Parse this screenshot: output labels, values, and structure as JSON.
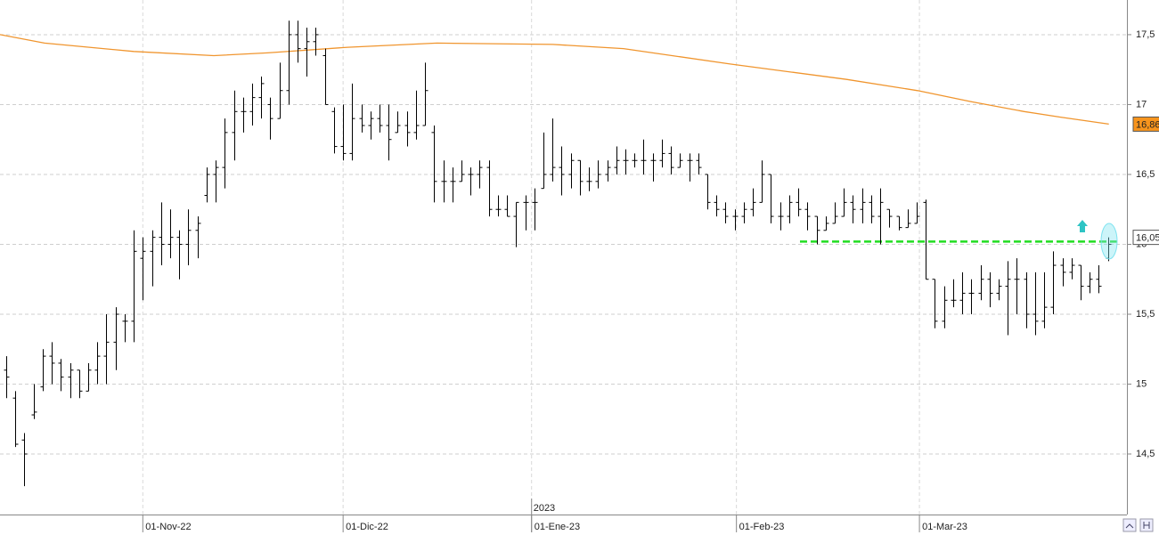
{
  "chart_data": {
    "type": "ohlc",
    "color": "#000000",
    "x": [
      0,
      1,
      2,
      3,
      4,
      5,
      6,
      7,
      8,
      9,
      10,
      11,
      12,
      13,
      14,
      15,
      16,
      17,
      18,
      19,
      20,
      21,
      22,
      23,
      24,
      25,
      26,
      27,
      28,
      29,
      30,
      31,
      32,
      33,
      34,
      35,
      36,
      37,
      38,
      39,
      40,
      41,
      42,
      43,
      44,
      45,
      46,
      47,
      48,
      49,
      50,
      51,
      52,
      53,
      54,
      55,
      56,
      57,
      58,
      59,
      60,
      61,
      62,
      63,
      64,
      65,
      66,
      67,
      68,
      69,
      70,
      71,
      72,
      73,
      74,
      75,
      76,
      77,
      78,
      79,
      80,
      81,
      82,
      83,
      84,
      85,
      86,
      87,
      88,
      89,
      90,
      91,
      92,
      93,
      94,
      95,
      96,
      97,
      98,
      99,
      100,
      101,
      102,
      103,
      104,
      105,
      106,
      107,
      108,
      109,
      110,
      111,
      112,
      113,
      114,
      115,
      116,
      117,
      118,
      119,
      120,
      121
    ],
    "open": [
      15.1,
      14.9,
      14.6,
      14.78,
      14.98,
      15.2,
      15.15,
      15.05,
      15.1,
      14.95,
      15.1,
      15.2,
      15.3,
      15.45,
      15.45,
      15.9,
      15.95,
      16.05,
      16.0,
      16.05,
      16.0,
      16.1,
      16.35,
      16.5,
      16.55,
      16.8,
      16.95,
      16.95,
      17.05,
      17.0,
      16.9,
      17.1,
      17.5,
      17.4,
      17.45,
      17.35,
      16.95,
      16.7,
      16.65,
      16.9,
      16.85,
      16.9,
      16.85,
      16.8,
      16.85,
      16.8,
      16.85,
      16.8,
      16.45,
      16.45,
      16.45,
      16.5,
      16.5,
      16.55,
      16.25,
      16.25,
      16.2,
      16.3,
      16.3,
      16.4,
      16.5,
      16.55,
      16.5,
      16.6,
      16.45,
      16.45,
      16.5,
      16.55,
      16.6,
      16.6,
      16.6,
      16.6,
      16.6,
      16.65,
      16.55,
      16.6,
      16.6,
      16.5,
      16.3,
      16.25,
      16.2,
      16.2,
      16.25,
      16.3,
      16.5,
      16.2,
      16.2,
      16.3,
      16.25,
      16.2,
      16.1,
      16.15,
      16.2,
      16.3,
      16.25,
      16.3,
      16.2,
      16.25,
      16.2,
      16.12,
      16.15,
      16.3,
      15.75,
      15.45,
      15.6,
      15.6,
      15.65,
      15.65,
      15.75,
      15.65,
      15.7,
      15.75,
      15.75,
      15.5,
      15.45,
      15.55,
      15.85,
      15.8,
      15.85,
      15.7,
      15.75,
      15.9
    ],
    "high": [
      15.2,
      14.95,
      14.65,
      15.0,
      15.25,
      15.3,
      15.18,
      15.15,
      15.1,
      15.15,
      15.3,
      15.5,
      15.55,
      15.5,
      16.1,
      16.05,
      16.1,
      16.3,
      16.25,
      16.1,
      16.25,
      16.2,
      16.55,
      16.6,
      16.9,
      17.1,
      17.05,
      17.15,
      17.2,
      17.05,
      17.3,
      17.6,
      17.6,
      17.55,
      17.55,
      17.4,
      16.98,
      17.0,
      17.15,
      17.0,
      16.95,
      17.0,
      17.0,
      16.95,
      16.95,
      17.1,
      17.3,
      16.85,
      16.6,
      16.55,
      16.6,
      16.55,
      16.6,
      16.6,
      16.35,
      16.35,
      16.3,
      16.35,
      16.4,
      16.8,
      16.9,
      16.7,
      16.65,
      16.6,
      16.55,
      16.6,
      16.6,
      16.7,
      16.68,
      16.65,
      16.75,
      16.65,
      16.75,
      16.7,
      16.65,
      16.65,
      16.65,
      16.5,
      16.35,
      16.3,
      16.25,
      16.3,
      16.4,
      16.6,
      16.5,
      16.3,
      16.35,
      16.4,
      16.3,
      16.2,
      16.2,
      16.3,
      16.4,
      16.35,
      16.4,
      16.35,
      16.4,
      16.25,
      16.2,
      16.25,
      16.3,
      16.32,
      15.75,
      15.7,
      15.75,
      15.8,
      15.75,
      15.85,
      15.8,
      15.75,
      15.88,
      15.9,
      15.8,
      15.8,
      15.8,
      15.95,
      15.9,
      15.9,
      15.85,
      15.8,
      15.85,
      16.05
    ],
    "low": [
      14.9,
      14.55,
      14.27,
      14.75,
      14.95,
      15.0,
      14.95,
      14.9,
      14.9,
      14.95,
      15.0,
      15.0,
      15.1,
      15.3,
      15.3,
      15.6,
      15.7,
      15.85,
      15.9,
      15.75,
      15.85,
      15.9,
      16.3,
      16.3,
      16.4,
      16.6,
      16.8,
      16.85,
      16.9,
      16.75,
      16.9,
      17.0,
      17.3,
      17.2,
      17.35,
      17.0,
      16.65,
      16.6,
      16.6,
      16.8,
      16.75,
      16.8,
      16.6,
      16.8,
      16.7,
      16.75,
      16.85,
      16.3,
      16.3,
      16.3,
      16.45,
      16.35,
      16.4,
      16.2,
      16.2,
      16.2,
      15.98,
      16.1,
      16.1,
      16.4,
      16.45,
      16.35,
      16.4,
      16.35,
      16.38,
      16.4,
      16.45,
      16.5,
      16.5,
      16.55,
      16.5,
      16.45,
      16.55,
      16.5,
      16.55,
      16.45,
      16.5,
      16.25,
      16.2,
      16.15,
      16.1,
      16.15,
      16.2,
      16.3,
      16.15,
      16.1,
      16.15,
      16.2,
      16.1,
      16.0,
      16.1,
      16.15,
      16.2,
      16.15,
      16.15,
      16.15,
      16.0,
      16.12,
      16.1,
      16.12,
      16.15,
      15.75,
      15.4,
      15.4,
      15.55,
      15.5,
      15.5,
      15.6,
      15.55,
      15.6,
      15.35,
      15.5,
      15.4,
      15.35,
      15.4,
      15.5,
      15.7,
      15.75,
      15.6,
      15.65,
      15.65,
      15.88
    ],
    "close": [
      15.05,
      14.57,
      14.5,
      14.8,
      15.2,
      15.15,
      15.05,
      15.1,
      14.95,
      15.1,
      15.2,
      15.3,
      15.5,
      15.45,
      15.95,
      15.95,
      16.05,
      16.0,
      16.05,
      16.0,
      16.1,
      16.15,
      16.5,
      16.55,
      16.8,
      16.95,
      16.95,
      17.05,
      17.15,
      16.9,
      17.1,
      17.5,
      17.4,
      17.45,
      17.5,
      17.0,
      16.7,
      16.65,
      16.9,
      16.85,
      16.9,
      16.85,
      16.75,
      16.85,
      16.8,
      16.85,
      17.1,
      16.45,
      16.45,
      16.45,
      16.5,
      16.5,
      16.55,
      16.25,
      16.25,
      16.2,
      16.3,
      16.3,
      16.3,
      16.5,
      16.55,
      16.5,
      16.6,
      16.45,
      16.45,
      16.5,
      16.55,
      16.6,
      16.6,
      16.6,
      16.6,
      16.6,
      16.65,
      16.55,
      16.6,
      16.6,
      16.55,
      16.3,
      16.25,
      16.2,
      16.2,
      16.25,
      16.3,
      16.5,
      16.2,
      16.2,
      16.3,
      16.25,
      16.2,
      16.1,
      16.15,
      16.2,
      16.3,
      16.25,
      16.3,
      16.2,
      16.3,
      16.2,
      16.12,
      16.15,
      16.2,
      15.75,
      15.45,
      15.6,
      15.6,
      15.65,
      15.65,
      15.75,
      15.65,
      15.7,
      15.75,
      15.75,
      15.5,
      15.45,
      15.55,
      15.85,
      15.8,
      15.85,
      15.7,
      15.75,
      15.7,
      16.0
    ],
    "xlim": [
      -0.685,
      123.09
    ],
    "xticks": [
      {
        "value": 15,
        "label": "01-Nov-22"
      },
      {
        "value": 37,
        "label": "01-Dic-22"
      },
      {
        "value": 57.7,
        "label": "01-Ene-23"
      },
      {
        "value": 80.2,
        "label": "01-Feb-23"
      },
      {
        "value": 100.3,
        "label": "01-Mar-23"
      }
    ],
    "year_marker": {
      "value": 57.7,
      "label": "2023"
    },
    "ylim": [
      14.067,
      17.748
    ],
    "yticks": [
      {
        "value": 14.5,
        "label": "14,5"
      },
      15,
      {
        "value": 15.5,
        "label": "15,5"
      },
      16,
      {
        "value": 16.5,
        "label": "16,5"
      },
      17,
      {
        "value": 17.5,
        "label": "17,5"
      }
    ],
    "grid": true,
    "moving_average": {
      "color": "#f0952e",
      "x": [
        -0.685,
        4.2,
        14,
        22.8,
        28.7,
        37.5,
        47.3,
        60,
        67.8,
        79.5,
        92.3,
        100.1,
        106,
        111.8,
        115.8,
        121.1
      ],
      "values": [
        17.5,
        17.44,
        17.38,
        17.35,
        17.37,
        17.41,
        17.44,
        17.43,
        17.4,
        17.29,
        17.18,
        17.1,
        17.02,
        16.95,
        16.91,
        16.86
      ]
    },
    "support_line": {
      "color": "#22dd22",
      "value": 16.02,
      "x": [
        87.18,
        122.1
      ]
    },
    "price_tags": [
      {
        "value": 16.86,
        "label": "16,86",
        "color": "#f7941d"
      },
      {
        "value": 16.05,
        "label": "16,05",
        "color": "#ffffff"
      }
    ]
  }
}
